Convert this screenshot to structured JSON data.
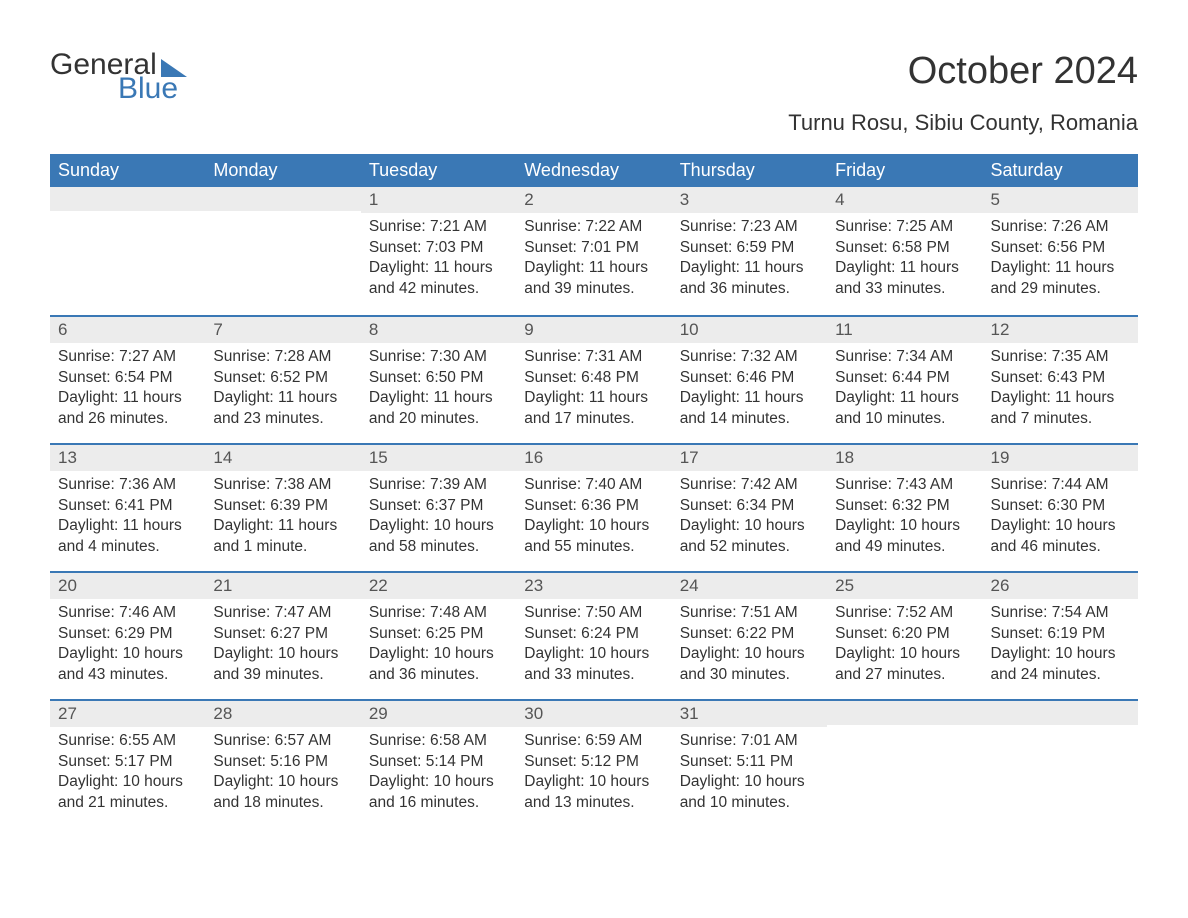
{
  "brand": {
    "word1": "General",
    "word2": "Blue",
    "accent_color": "#3a78b5"
  },
  "title": "October 2024",
  "location": "Turnu Rosu, Sibiu County, Romania",
  "colors": {
    "header_bg": "#3a78b5",
    "header_text": "#ffffff",
    "daynum_bg": "#ececec",
    "text": "#333333",
    "row_border": "#3a78b5",
    "page_bg": "#ffffff"
  },
  "typography": {
    "title_fontsize": 38,
    "subtitle_fontsize": 22,
    "dow_fontsize": 18,
    "body_fontsize": 15.5
  },
  "days_of_week": [
    "Sunday",
    "Monday",
    "Tuesday",
    "Wednesday",
    "Thursday",
    "Friday",
    "Saturday"
  ],
  "weeks": [
    [
      null,
      null,
      {
        "n": "1",
        "sr": "Sunrise: 7:21 AM",
        "ss": "Sunset: 7:03 PM",
        "dl1": "Daylight: 11 hours",
        "dl2": "and 42 minutes."
      },
      {
        "n": "2",
        "sr": "Sunrise: 7:22 AM",
        "ss": "Sunset: 7:01 PM",
        "dl1": "Daylight: 11 hours",
        "dl2": "and 39 minutes."
      },
      {
        "n": "3",
        "sr": "Sunrise: 7:23 AM",
        "ss": "Sunset: 6:59 PM",
        "dl1": "Daylight: 11 hours",
        "dl2": "and 36 minutes."
      },
      {
        "n": "4",
        "sr": "Sunrise: 7:25 AM",
        "ss": "Sunset: 6:58 PM",
        "dl1": "Daylight: 11 hours",
        "dl2": "and 33 minutes."
      },
      {
        "n": "5",
        "sr": "Sunrise: 7:26 AM",
        "ss": "Sunset: 6:56 PM",
        "dl1": "Daylight: 11 hours",
        "dl2": "and 29 minutes."
      }
    ],
    [
      {
        "n": "6",
        "sr": "Sunrise: 7:27 AM",
        "ss": "Sunset: 6:54 PM",
        "dl1": "Daylight: 11 hours",
        "dl2": "and 26 minutes."
      },
      {
        "n": "7",
        "sr": "Sunrise: 7:28 AM",
        "ss": "Sunset: 6:52 PM",
        "dl1": "Daylight: 11 hours",
        "dl2": "and 23 minutes."
      },
      {
        "n": "8",
        "sr": "Sunrise: 7:30 AM",
        "ss": "Sunset: 6:50 PM",
        "dl1": "Daylight: 11 hours",
        "dl2": "and 20 minutes."
      },
      {
        "n": "9",
        "sr": "Sunrise: 7:31 AM",
        "ss": "Sunset: 6:48 PM",
        "dl1": "Daylight: 11 hours",
        "dl2": "and 17 minutes."
      },
      {
        "n": "10",
        "sr": "Sunrise: 7:32 AM",
        "ss": "Sunset: 6:46 PM",
        "dl1": "Daylight: 11 hours",
        "dl2": "and 14 minutes."
      },
      {
        "n": "11",
        "sr": "Sunrise: 7:34 AM",
        "ss": "Sunset: 6:44 PM",
        "dl1": "Daylight: 11 hours",
        "dl2": "and 10 minutes."
      },
      {
        "n": "12",
        "sr": "Sunrise: 7:35 AM",
        "ss": "Sunset: 6:43 PM",
        "dl1": "Daylight: 11 hours",
        "dl2": "and 7 minutes."
      }
    ],
    [
      {
        "n": "13",
        "sr": "Sunrise: 7:36 AM",
        "ss": "Sunset: 6:41 PM",
        "dl1": "Daylight: 11 hours",
        "dl2": "and 4 minutes."
      },
      {
        "n": "14",
        "sr": "Sunrise: 7:38 AM",
        "ss": "Sunset: 6:39 PM",
        "dl1": "Daylight: 11 hours",
        "dl2": "and 1 minute."
      },
      {
        "n": "15",
        "sr": "Sunrise: 7:39 AM",
        "ss": "Sunset: 6:37 PM",
        "dl1": "Daylight: 10 hours",
        "dl2": "and 58 minutes."
      },
      {
        "n": "16",
        "sr": "Sunrise: 7:40 AM",
        "ss": "Sunset: 6:36 PM",
        "dl1": "Daylight: 10 hours",
        "dl2": "and 55 minutes."
      },
      {
        "n": "17",
        "sr": "Sunrise: 7:42 AM",
        "ss": "Sunset: 6:34 PM",
        "dl1": "Daylight: 10 hours",
        "dl2": "and 52 minutes."
      },
      {
        "n": "18",
        "sr": "Sunrise: 7:43 AM",
        "ss": "Sunset: 6:32 PM",
        "dl1": "Daylight: 10 hours",
        "dl2": "and 49 minutes."
      },
      {
        "n": "19",
        "sr": "Sunrise: 7:44 AM",
        "ss": "Sunset: 6:30 PM",
        "dl1": "Daylight: 10 hours",
        "dl2": "and 46 minutes."
      }
    ],
    [
      {
        "n": "20",
        "sr": "Sunrise: 7:46 AM",
        "ss": "Sunset: 6:29 PM",
        "dl1": "Daylight: 10 hours",
        "dl2": "and 43 minutes."
      },
      {
        "n": "21",
        "sr": "Sunrise: 7:47 AM",
        "ss": "Sunset: 6:27 PM",
        "dl1": "Daylight: 10 hours",
        "dl2": "and 39 minutes."
      },
      {
        "n": "22",
        "sr": "Sunrise: 7:48 AM",
        "ss": "Sunset: 6:25 PM",
        "dl1": "Daylight: 10 hours",
        "dl2": "and 36 minutes."
      },
      {
        "n": "23",
        "sr": "Sunrise: 7:50 AM",
        "ss": "Sunset: 6:24 PM",
        "dl1": "Daylight: 10 hours",
        "dl2": "and 33 minutes."
      },
      {
        "n": "24",
        "sr": "Sunrise: 7:51 AM",
        "ss": "Sunset: 6:22 PM",
        "dl1": "Daylight: 10 hours",
        "dl2": "and 30 minutes."
      },
      {
        "n": "25",
        "sr": "Sunrise: 7:52 AM",
        "ss": "Sunset: 6:20 PM",
        "dl1": "Daylight: 10 hours",
        "dl2": "and 27 minutes."
      },
      {
        "n": "26",
        "sr": "Sunrise: 7:54 AM",
        "ss": "Sunset: 6:19 PM",
        "dl1": "Daylight: 10 hours",
        "dl2": "and 24 minutes."
      }
    ],
    [
      {
        "n": "27",
        "sr": "Sunrise: 6:55 AM",
        "ss": "Sunset: 5:17 PM",
        "dl1": "Daylight: 10 hours",
        "dl2": "and 21 minutes."
      },
      {
        "n": "28",
        "sr": "Sunrise: 6:57 AM",
        "ss": "Sunset: 5:16 PM",
        "dl1": "Daylight: 10 hours",
        "dl2": "and 18 minutes."
      },
      {
        "n": "29",
        "sr": "Sunrise: 6:58 AM",
        "ss": "Sunset: 5:14 PM",
        "dl1": "Daylight: 10 hours",
        "dl2": "and 16 minutes."
      },
      {
        "n": "30",
        "sr": "Sunrise: 6:59 AM",
        "ss": "Sunset: 5:12 PM",
        "dl1": "Daylight: 10 hours",
        "dl2": "and 13 minutes."
      },
      {
        "n": "31",
        "sr": "Sunrise: 7:01 AM",
        "ss": "Sunset: 5:11 PM",
        "dl1": "Daylight: 10 hours",
        "dl2": "and 10 minutes."
      },
      null,
      null
    ]
  ]
}
